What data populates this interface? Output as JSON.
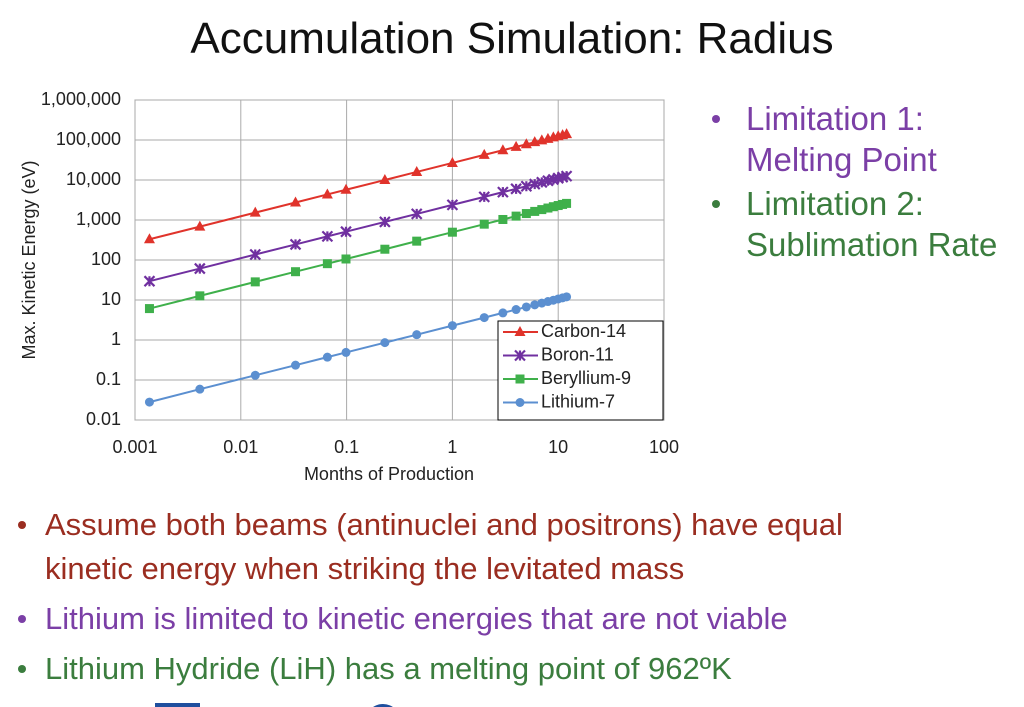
{
  "title": "Accumulation Simulation: Radius",
  "side_bullets": [
    {
      "lines": [
        "Limitation 1:",
        "Melting Point"
      ],
      "color": "#7b3fa6"
    },
    {
      "lines": [
        "Limitation 2:",
        "Sublimation Rate"
      ],
      "color": "#3b7d3e"
    }
  ],
  "bullets": [
    {
      "lines": [
        "Assume both beams (antinuclei and positrons) have equal",
        "kinetic energy when striking the levitated mass"
      ],
      "color": "#9a2d20"
    },
    {
      "lines": [
        "Lithium is limited to kinetic energies that are not viable"
      ],
      "color": "#7b3fa6"
    },
    {
      "lines": [
        "Lithium Hydride (LiH) has a melting point of 962ºK"
      ],
      "color": "#3b7d3e"
    }
  ],
  "chart_data": {
    "type": "line",
    "x_label": "Months of Production",
    "y_label": "Max. Kinetic Energy (eV)",
    "xscale": "log",
    "yscale": "log",
    "grid": true,
    "legend": "lower right",
    "xlim": [
      0.001,
      100
    ],
    "xticks": [
      0.001,
      0.01,
      0.1,
      1,
      10,
      100
    ],
    "ylim": [
      0.01,
      1000000
    ],
    "yticks": [
      0.01,
      0.1,
      1,
      10,
      100,
      {
        "value": 1000,
        "label": "1,000"
      },
      {
        "value": 10000,
        "label": "10,000"
      },
      {
        "value": 100000,
        "label": "100,000"
      },
      {
        "value": 1000000,
        "label": "1,000,000"
      }
    ],
    "x": [
      0.00137,
      0.0041,
      0.0137,
      0.0329,
      0.0658,
      0.0987,
      0.23,
      0.46,
      1,
      2,
      3,
      4,
      5,
      6,
      7,
      8,
      9,
      10,
      11,
      12
    ],
    "series": [
      {
        "name": "Carbon-14",
        "color": "#e0332b",
        "marker": "triangle",
        "values": [
          330,
          684,
          1530,
          2740,
          4350,
          5700,
          10000,
          15900,
          26700,
          42400,
          55500,
          67300,
          78100,
          88200,
          97700,
          107000,
          116000,
          124000,
          132000,
          140000
        ]
      },
      {
        "name": "Boron-11",
        "color": "#7030a0",
        "marker": "x-square",
        "values": [
          29.5,
          61,
          137,
          245,
          390,
          510,
          897,
          1420,
          2390,
          3790,
          4970,
          6020,
          6990,
          7890,
          8750,
          9560,
          10300,
          11100,
          11800,
          12500
        ]
      },
      {
        "name": "Beryllium-9",
        "color": "#3fb04b",
        "marker": "square",
        "values": [
          6.1,
          12.7,
          28.4,
          51,
          81,
          106,
          186,
          296,
          496,
          787,
          1030,
          1250,
          1450,
          1640,
          1820,
          1990,
          2150,
          2300,
          2450,
          2600
        ]
      },
      {
        "name": "Lithium-7",
        "color": "#5b8fd0",
        "marker": "circle",
        "values": [
          0.028,
          0.059,
          0.131,
          0.235,
          0.373,
          0.489,
          0.86,
          1.36,
          2.29,
          3.63,
          4.76,
          5.77,
          6.7,
          7.56,
          8.38,
          9.15,
          9.88,
          10.6,
          11.3,
          12
        ]
      }
    ]
  }
}
